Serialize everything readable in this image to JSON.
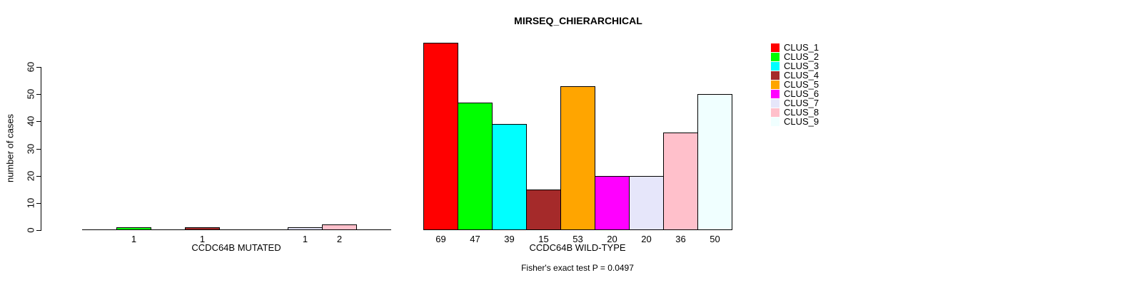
{
  "chart_data": {
    "type": "bar",
    "title": "MIRSEQ_CHIERARCHICAL",
    "ylabel": "number of cases",
    "ylim": [
      0,
      60
    ],
    "yticks": [
      0,
      10,
      20,
      30,
      40,
      50,
      60
    ],
    "categories": [
      "CCDC64B MUTATED",
      "CCDC64B WILD-TYPE"
    ],
    "series": [
      {
        "name": "CLUS_1",
        "color": "#FF0000",
        "values": [
          0,
          69
        ]
      },
      {
        "name": "CLUS_2",
        "color": "#00FF00",
        "values": [
          1,
          47
        ]
      },
      {
        "name": "CLUS_3",
        "color": "#00FFFF",
        "values": [
          0,
          39
        ]
      },
      {
        "name": "CLUS_4",
        "color": "#A52A2A",
        "values": [
          1,
          15
        ]
      },
      {
        "name": "CLUS_5",
        "color": "#FFA500",
        "values": [
          0,
          53
        ]
      },
      {
        "name": "CLUS_6",
        "color": "#FF00FF",
        "values": [
          0,
          20
        ]
      },
      {
        "name": "CLUS_7",
        "color": "#E6E6FA",
        "values": [
          1,
          20
        ]
      },
      {
        "name": "CLUS_8",
        "color": "#FFC0CB",
        "values": [
          2,
          36
        ]
      },
      {
        "name": "CLUS_9",
        "color": "#F0FFFF",
        "values": [
          0,
          50
        ]
      }
    ],
    "bar_value_labels": true,
    "legend_position": "right",
    "grid": false,
    "footnote": "Fisher's exact test P = 0.0497"
  }
}
